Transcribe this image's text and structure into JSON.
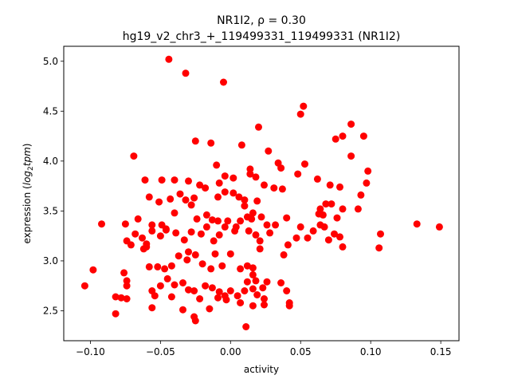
{
  "chart_data": {
    "type": "scatter",
    "title": "NR1I2, ρ = 0.30",
    "subtitle": "hg19_v2_chr3_+_119499331_119499331 (NR1I2)",
    "xlabel": "activity",
    "ylabel_prefix": "expression (",
    "ylabel_math": "log",
    "ylabel_sub": "2",
    "ylabel_math2": "tpm",
    "ylabel_suffix": ")",
    "xlim": [
      -0.119,
      0.163
    ],
    "ylim": [
      2.2,
      5.15
    ],
    "xticks": [
      -0.1,
      -0.05,
      0.0,
      0.05,
      0.1,
      0.15
    ],
    "xtick_labels": [
      "−0.10",
      "−0.05",
      "0.00",
      "0.05",
      "0.10",
      "0.15"
    ],
    "yticks": [
      2.5,
      3.0,
      3.5,
      4.0,
      4.5,
      5.0
    ],
    "ytick_labels": [
      "2.5",
      "3.0",
      "3.5",
      "4.0",
      "4.5",
      "5.0"
    ],
    "marker_color": "#ff0000",
    "grid": false,
    "points": [
      [
        -0.044,
        5.02
      ],
      [
        -0.032,
        4.88
      ],
      [
        -0.005,
        4.79
      ],
      [
        0.052,
        4.55
      ],
      [
        0.05,
        4.47
      ],
      [
        0.086,
        4.37
      ],
      [
        0.02,
        4.34
      ],
      [
        0.095,
        4.25
      ],
      [
        0.08,
        4.25
      ],
      [
        0.075,
        4.22
      ],
      [
        -0.025,
        4.2
      ],
      [
        -0.014,
        4.18
      ],
      [
        0.008,
        4.16
      ],
      [
        0.027,
        4.1
      ],
      [
        -0.069,
        4.05
      ],
      [
        0.086,
        4.05
      ],
      [
        -0.01,
        3.96
      ],
      [
        0.034,
        3.98
      ],
      [
        0.053,
        3.97
      ],
      [
        0.036,
        3.93
      ],
      [
        0.014,
        3.92
      ],
      [
        -0.049,
        3.81
      ],
      [
        -0.04,
        3.81
      ],
      [
        -0.03,
        3.8
      ],
      [
        -0.022,
        3.76
      ],
      [
        -0.004,
        3.85
      ],
      [
        0.002,
        3.83
      ],
      [
        0.014,
        3.87
      ],
      [
        0.018,
        3.84
      ],
      [
        0.048,
        3.87
      ],
      [
        0.098,
        3.9
      ],
      [
        0.062,
        3.82
      ],
      [
        -0.061,
        3.81
      ],
      [
        -0.008,
        3.78
      ],
      [
        0.024,
        3.76
      ],
      [
        0.031,
        3.73
      ],
      [
        0.097,
        3.78
      ],
      [
        0.071,
        3.76
      ],
      [
        0.078,
        3.74
      ],
      [
        -0.058,
        3.64
      ],
      [
        -0.051,
        3.59
      ],
      [
        -0.043,
        3.62
      ],
      [
        -0.036,
        3.67
      ],
      [
        -0.032,
        3.61
      ],
      [
        -0.026,
        3.63
      ],
      [
        -0.018,
        3.73
      ],
      [
        -0.009,
        3.64
      ],
      [
        0.006,
        3.64
      ],
      [
        0.01,
        3.61
      ],
      [
        0.019,
        3.6
      ],
      [
        -0.004,
        3.69
      ],
      [
        0.002,
        3.68
      ],
      [
        0.037,
        3.72
      ],
      [
        0.093,
        3.66
      ],
      [
        0.068,
        3.57
      ],
      [
        0.072,
        3.57
      ],
      [
        -0.066,
        3.42
      ],
      [
        -0.056,
        3.36
      ],
      [
        -0.049,
        3.36
      ],
      [
        -0.04,
        3.48
      ],
      [
        -0.028,
        3.56
      ],
      [
        -0.024,
        3.42
      ],
      [
        -0.017,
        3.46
      ],
      [
        -0.013,
        3.41
      ],
      [
        -0.009,
        3.4
      ],
      [
        -0.002,
        3.4
      ],
      [
        0.007,
        3.4
      ],
      [
        0.012,
        3.44
      ],
      [
        0.015,
        3.42
      ],
      [
        0.022,
        3.44
      ],
      [
        0.01,
        3.55
      ],
      [
        0.016,
        3.48
      ],
      [
        0.032,
        3.36
      ],
      [
        0.04,
        3.43
      ],
      [
        0.05,
        3.34
      ],
      [
        0.063,
        3.47
      ],
      [
        0.064,
        3.52
      ],
      [
        0.066,
        3.46
      ],
      [
        0.076,
        3.43
      ],
      [
        0.08,
        3.52
      ],
      [
        0.091,
        3.52
      ],
      [
        -0.092,
        3.37
      ],
      [
        -0.075,
        3.37
      ],
      [
        -0.074,
        3.2
      ],
      [
        -0.071,
        3.16
      ],
      [
        -0.068,
        3.27
      ],
      [
        -0.063,
        3.23
      ],
      [
        -0.06,
        3.17
      ],
      [
        -0.056,
        3.3
      ],
      [
        -0.05,
        3.25
      ],
      [
        -0.046,
        3.31
      ],
      [
        -0.039,
        3.28
      ],
      [
        -0.033,
        3.21
      ],
      [
        -0.028,
        3.29
      ],
      [
        -0.021,
        3.27
      ],
      [
        -0.017,
        3.34
      ],
      [
        -0.008,
        3.26
      ],
      [
        -0.004,
        3.34
      ],
      [
        0.003,
        3.3
      ],
      [
        0.013,
        3.3
      ],
      [
        0.018,
        3.26
      ],
      [
        0.021,
        3.2
      ],
      [
        0.026,
        3.36
      ],
      [
        0.038,
        3.06
      ],
      [
        0.041,
        3.16
      ],
      [
        0.047,
        3.23
      ],
      [
        0.055,
        3.23
      ],
      [
        0.059,
        3.3
      ],
      [
        0.064,
        3.36
      ],
      [
        0.067,
        3.34
      ],
      [
        0.07,
        3.21
      ],
      [
        0.074,
        3.27
      ],
      [
        0.078,
        3.24
      ],
      [
        0.08,
        3.14
      ],
      [
        0.106,
        3.13
      ],
      [
        0.107,
        3.27
      ],
      [
        0.133,
        3.37
      ],
      [
        0.149,
        3.34
      ],
      [
        -0.098,
        2.91
      ],
      [
        -0.076,
        2.88
      ],
      [
        -0.074,
        2.8
      ],
      [
        -0.074,
        2.75
      ],
      [
        -0.06,
        3.14
      ],
      [
        -0.058,
        2.94
      ],
      [
        -0.052,
        2.94
      ],
      [
        -0.047,
        2.92
      ],
      [
        -0.042,
        2.95
      ],
      [
        -0.037,
        3.05
      ],
      [
        -0.031,
        3.01
      ],
      [
        -0.025,
        3.06
      ],
      [
        -0.02,
        2.97
      ],
      [
        -0.014,
        2.92
      ],
      [
        -0.011,
        3.07
      ],
      [
        -0.006,
        2.95
      ],
      [
        0.0,
        3.07
      ],
      [
        0.007,
        2.92
      ],
      [
        0.012,
        2.95
      ],
      [
        0.016,
        2.93
      ],
      [
        0.021,
        3.12
      ],
      [
        0.016,
        2.86
      ],
      [
        0.012,
        2.79
      ],
      [
        -0.104,
        2.75
      ],
      [
        -0.082,
        2.64
      ],
      [
        -0.078,
        2.63
      ],
      [
        -0.074,
        2.62
      ],
      [
        -0.056,
        2.7
      ],
      [
        -0.054,
        2.65
      ],
      [
        -0.05,
        2.75
      ],
      [
        -0.045,
        2.82
      ],
      [
        -0.04,
        2.76
      ],
      [
        -0.034,
        2.78
      ],
      [
        -0.03,
        2.71
      ],
      [
        -0.026,
        2.7
      ],
      [
        -0.022,
        2.62
      ],
      [
        -0.018,
        2.75
      ],
      [
        -0.013,
        2.73
      ],
      [
        -0.008,
        2.69
      ],
      [
        -0.004,
        2.65
      ],
      [
        0.0,
        2.7
      ],
      [
        0.005,
        2.65
      ],
      [
        0.01,
        2.7
      ],
      [
        0.016,
        2.72
      ],
      [
        0.019,
        2.66
      ],
      [
        0.024,
        2.62
      ],
      [
        0.024,
        2.56
      ],
      [
        0.016,
        2.55
      ],
      [
        0.042,
        2.58
      ],
      [
        0.042,
        2.55
      ],
      [
        -0.082,
        2.47
      ],
      [
        -0.056,
        2.53
      ],
      [
        -0.042,
        2.64
      ],
      [
        -0.034,
        2.51
      ],
      [
        -0.026,
        2.44
      ],
      [
        -0.025,
        2.4
      ],
      [
        -0.015,
        2.52
      ],
      [
        -0.009,
        2.63
      ],
      [
        -0.003,
        2.61
      ],
      [
        0.007,
        2.58
      ],
      [
        0.011,
        2.34
      ],
      [
        0.018,
        2.8
      ],
      [
        0.023,
        2.73
      ],
      [
        0.026,
        2.79
      ],
      [
        0.036,
        2.78
      ],
      [
        0.04,
        2.7
      ],
      [
        -0.062,
        3.12
      ],
      [
        -0.03,
        3.09
      ],
      [
        -0.046,
        3.32
      ],
      [
        -0.012,
        3.2
      ],
      [
        0.004,
        3.34
      ],
      [
        0.028,
        3.28
      ]
    ]
  }
}
